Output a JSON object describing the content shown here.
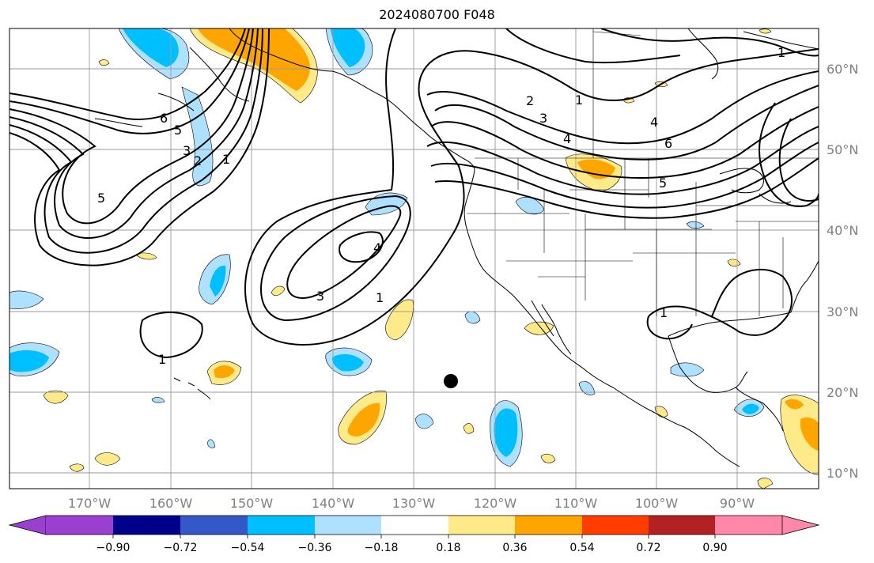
{
  "title": "2024080700 F048",
  "lat_labels": [
    "60°N",
    "50°N",
    "40°N",
    "30°N",
    "20°N",
    "10°N"
  ],
  "lon_labels": [
    "170°W",
    "160°W",
    "150°W",
    "140°W",
    "130°W",
    "120°W",
    "110°W",
    "100°W",
    "90°W"
  ],
  "colorbar": {
    "ticks": [
      "−0.90",
      "−0.72",
      "−0.54",
      "−0.36",
      "−0.18",
      "0.18",
      "0.36",
      "0.54",
      "0.72",
      "0.90"
    ],
    "colors": [
      "#9a3fd0",
      "#00008b",
      "#3558c8",
      "#00bfff",
      "#aee0ff",
      "#ffffff",
      "#ffea8a",
      "#ffa500",
      "#ff3d00",
      "#b22222",
      "#ff88aa"
    ]
  },
  "contour_labels": [
    "6",
    "5",
    "3",
    "2",
    "1",
    "5",
    "4",
    "3",
    "1",
    "1",
    "2",
    "1",
    "3",
    "4",
    "4",
    "6",
    "5",
    "1",
    "1"
  ],
  "marker": {
    "name": "black-dot"
  }
}
